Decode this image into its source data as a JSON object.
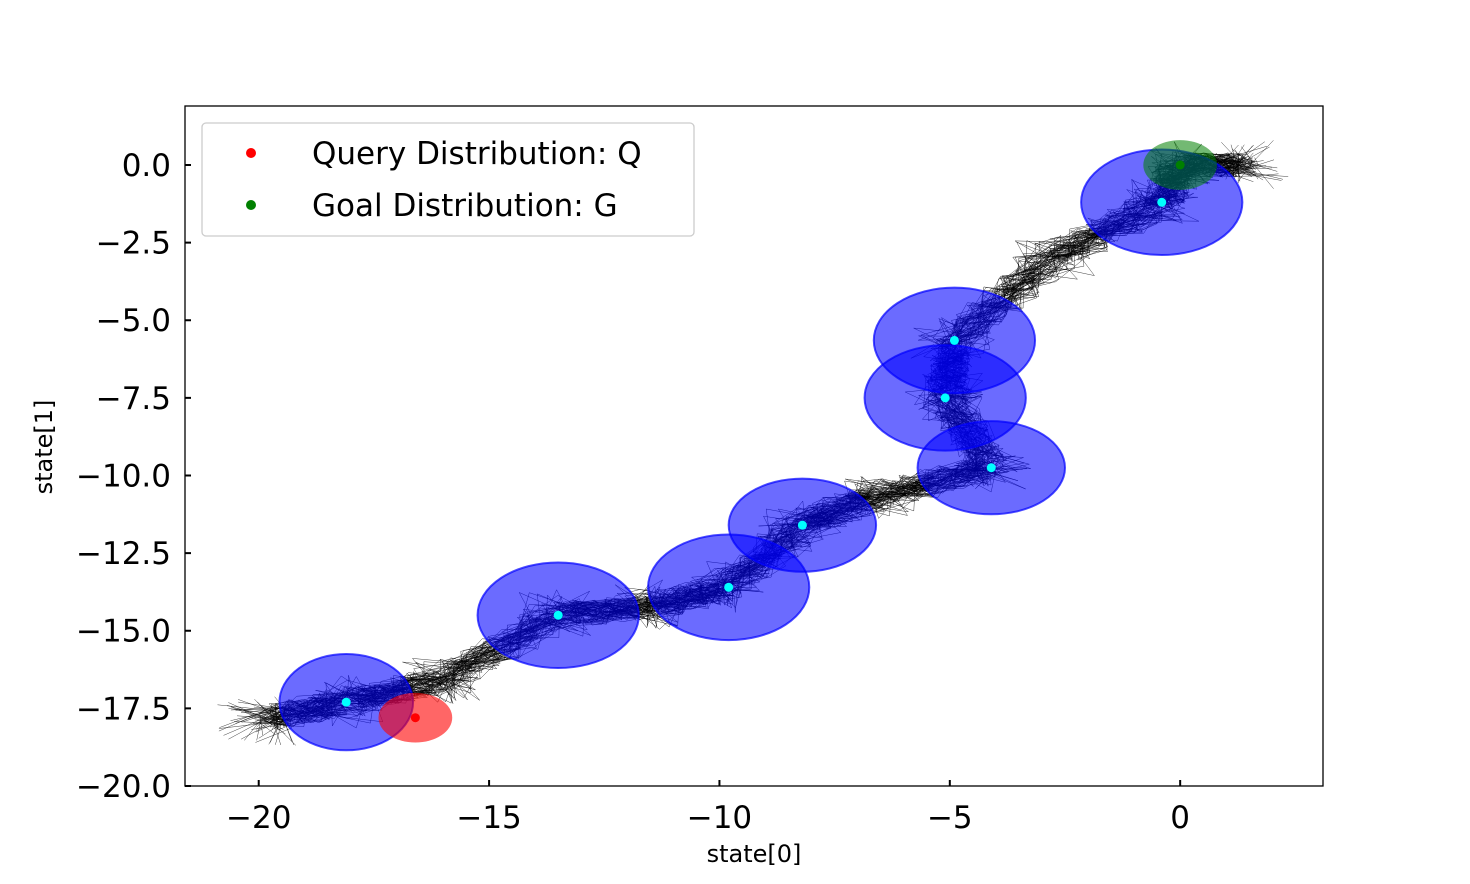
{
  "chart_data": {
    "type": "scatter",
    "title": "",
    "xlabel": "state[0]",
    "ylabel": "state[1]",
    "xlim": [
      -21.6,
      3.1
    ],
    "ylim": [
      -20.0,
      1.9
    ],
    "xticks": [
      -20,
      -15,
      -10,
      -5,
      0
    ],
    "yticks": [
      0.0,
      -2.5,
      -5.0,
      -7.5,
      -10.0,
      -12.5,
      -15.0,
      -17.5,
      -20.0
    ],
    "xtick_labels": [
      "−20",
      "−15",
      "−10",
      "−5",
      "0"
    ],
    "ytick_labels": [
      "0.0",
      "−2.5",
      "−5.0",
      "−7.5",
      "−10.0",
      "−12.5",
      "−15.0",
      "−17.5",
      "−20.0"
    ],
    "grid": false,
    "legend": {
      "position": "top-left",
      "entries": [
        {
          "label": "Query Distribution: Q",
          "color": "#ff0000"
        },
        {
          "label": "Goal Distribution: G",
          "color": "#008000"
        }
      ]
    },
    "query": {
      "center": [
        -16.6,
        -17.8
      ],
      "radius": [
        0.8,
        0.8
      ],
      "color": "#ff0000"
    },
    "goal": {
      "center": [
        0.0,
        0.0
      ],
      "radius": [
        0.8,
        0.8
      ],
      "color": "#008000"
    },
    "waypoints": {
      "color": "#00ffff",
      "region_color": "#0000ff",
      "centers": [
        [
          -18.1,
          -17.3
        ],
        [
          -13.5,
          -14.5
        ],
        [
          -9.8,
          -13.6
        ],
        [
          -8.2,
          -11.6
        ],
        [
          -4.1,
          -9.75
        ],
        [
          -5.1,
          -7.5
        ],
        [
          -4.9,
          -5.65
        ],
        [
          -0.4,
          -1.2
        ]
      ],
      "radii": [
        [
          1.45,
          1.55
        ],
        [
          1.75,
          1.7
        ],
        [
          1.75,
          1.7
        ],
        [
          1.6,
          1.5
        ],
        [
          1.6,
          1.5
        ],
        [
          1.75,
          1.7
        ],
        [
          1.75,
          1.7
        ],
        [
          1.75,
          1.7
        ]
      ]
    },
    "trajectories": {
      "count": 70,
      "color": "#000000",
      "path": [
        [
          -20.0,
          -17.9
        ],
        [
          -18.1,
          -17.3
        ],
        [
          -16.0,
          -16.6
        ],
        [
          -13.5,
          -14.5
        ],
        [
          -11.5,
          -14.2
        ],
        [
          -9.8,
          -13.6
        ],
        [
          -8.2,
          -11.6
        ],
        [
          -6.5,
          -10.6
        ],
        [
          -4.1,
          -9.75
        ],
        [
          -5.1,
          -7.5
        ],
        [
          -4.9,
          -5.65
        ],
        [
          -2.8,
          -3.0
        ],
        [
          -0.4,
          -1.2
        ],
        [
          0.0,
          0.0
        ],
        [
          1.5,
          0.0
        ]
      ]
    }
  }
}
